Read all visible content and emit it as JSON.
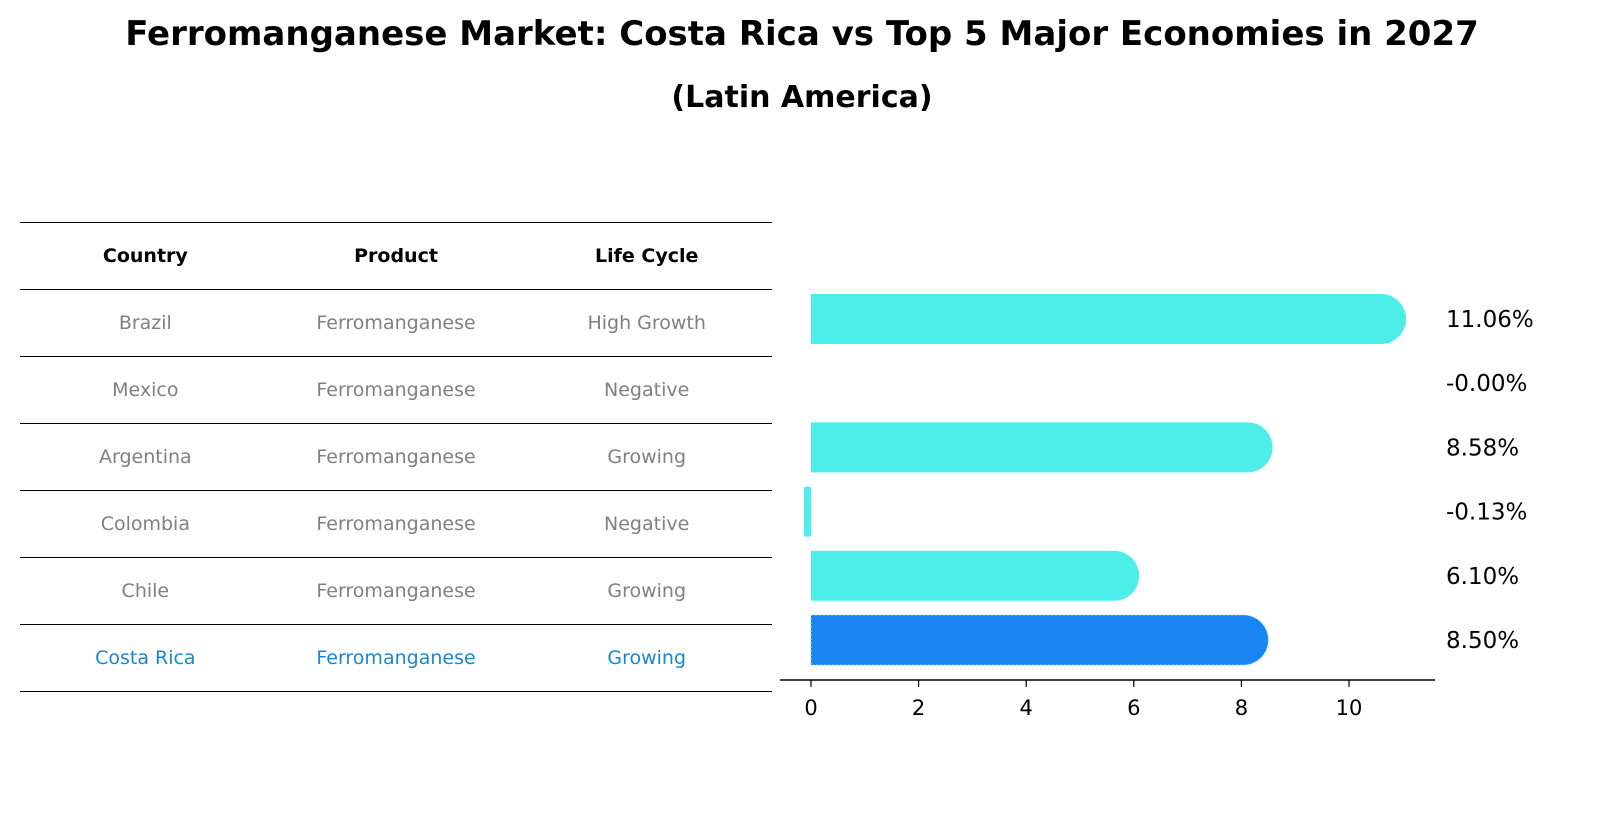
{
  "title": "Ferromanganese Market: Costa Rica vs Top 5 Major Economies in 2027",
  "subtitle": "(Latin America)",
  "table": {
    "headers": [
      "Country",
      "Product",
      "Life Cycle"
    ],
    "rows": [
      {
        "country": "Brazil",
        "product": "Ferromanganese",
        "life_cycle": "High Growth"
      },
      {
        "country": "Mexico",
        "product": "Ferromanganese",
        "life_cycle": "Negative"
      },
      {
        "country": "Argentina",
        "product": "Ferromanganese",
        "life_cycle": "Growing"
      },
      {
        "country": "Colombia",
        "product": "Ferromanganese",
        "life_cycle": "Negative"
      },
      {
        "country": "Chile",
        "product": "Ferromanganese",
        "life_cycle": "Growing"
      },
      {
        "country": "Costa Rica",
        "product": "Ferromanganese",
        "life_cycle": "Growing"
      }
    ]
  },
  "chart_data": {
    "type": "bar",
    "orientation": "horizontal",
    "categories": [
      "Brazil",
      "Mexico",
      "Argentina",
      "Colombia",
      "Chile",
      "Costa Rica"
    ],
    "values": [
      11.06,
      -0.0,
      8.58,
      -0.13,
      6.1,
      8.5
    ],
    "value_labels": [
      "11.06%",
      "-0.00%",
      "8.58%",
      "-0.13%",
      "6.10%",
      "8.50%"
    ],
    "xlim": [
      -0.7,
      11.6
    ],
    "xticks": [
      0,
      2,
      4,
      6,
      8,
      10
    ],
    "highlight_index": 5,
    "colors": {
      "default": "#4deeea",
      "highlight": "#1885f2"
    }
  }
}
